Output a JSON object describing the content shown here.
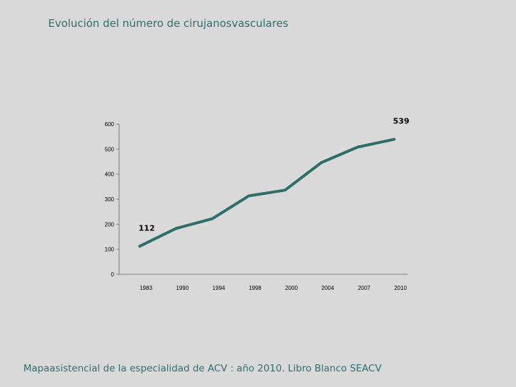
{
  "page": {
    "title": "Evolución del número de cirujanosvasculares",
    "footer": "Mapaasistencial de la especialidad de ACV : año 2010. Libro Blanco SEACV"
  },
  "colors": {
    "line": "#2e6e6a",
    "axis": "#7f7f7f",
    "background": "#d9d9d9"
  },
  "chart_data": {
    "type": "line",
    "categories": [
      "1983",
      "1990",
      "1994",
      "1998",
      "2000",
      "2004",
      "2007",
      "2010"
    ],
    "values": [
      112,
      183,
      222,
      313,
      336,
      446,
      508,
      539
    ],
    "data_labels": [
      {
        "index": 0,
        "text": "112"
      },
      {
        "index": 7,
        "text": "539"
      }
    ],
    "ylim": [
      0,
      600
    ],
    "yticks": [
      0,
      100,
      200,
      300,
      400,
      500,
      600
    ],
    "grid": false,
    "legend": "none"
  }
}
